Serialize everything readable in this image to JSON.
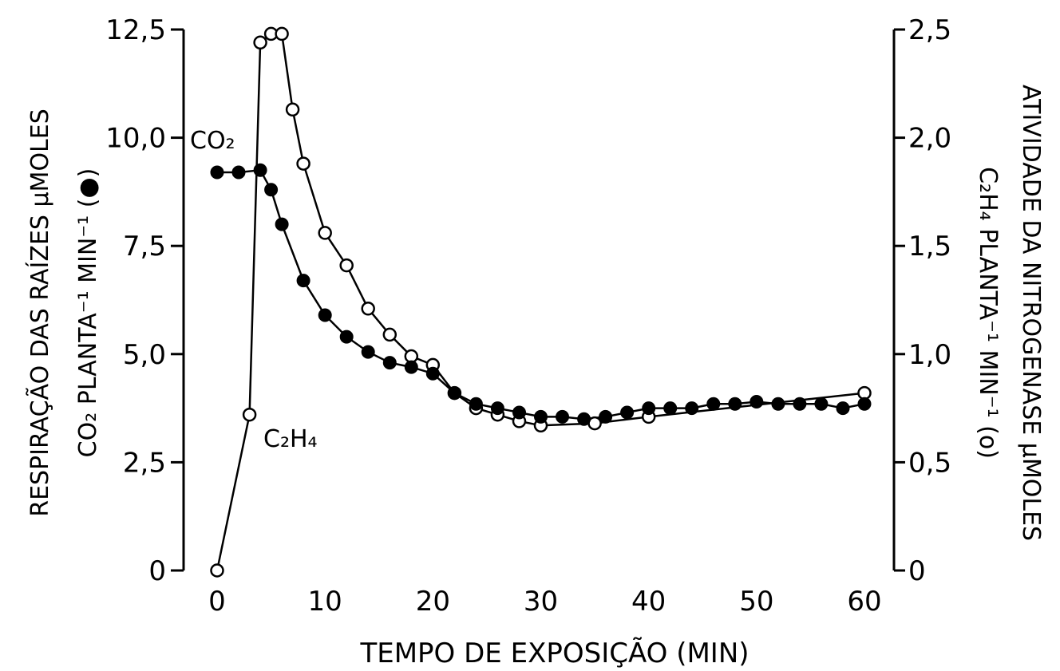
{
  "chart_data": {
    "type": "line",
    "xlabel": "TEMPO DE EXPOSIÇÃO (MIN)",
    "ylabel_left": [
      "RESPIRAÇÃO DAS RAÍZES μMOLES",
      "CO₂ PLANTA⁻¹ MIN⁻¹ (●)"
    ],
    "ylabel_right": [
      "ATIVIDADE DA NITROGENASE μMOLES",
      "C₂H₄ PLANTA⁻¹ MIN⁻¹ (o)"
    ],
    "xlim": [
      0,
      60
    ],
    "ylim_left": [
      0,
      12.5
    ],
    "ylim_right": [
      0,
      2.5
    ],
    "x_ticks": [
      "0",
      "10",
      "20",
      "30",
      "40",
      "50",
      "60"
    ],
    "y_left_ticks": [
      "0",
      "2,5",
      "5,0",
      "7,5",
      "10,0",
      "12,5"
    ],
    "y_right_ticks": [
      "0",
      "0,5",
      "1,0",
      "1,5",
      "2,0",
      "2,5"
    ],
    "grid": false,
    "series": [
      {
        "name": "CO₂",
        "axis": "left",
        "marker": "filled",
        "x": [
          0,
          2,
          4,
          5,
          6,
          8,
          10,
          12,
          14,
          16,
          18,
          20,
          22,
          24,
          26,
          28,
          30,
          32,
          34,
          36,
          38,
          40,
          42,
          44,
          46,
          48,
          50,
          52,
          54,
          56,
          58,
          60
        ],
        "y": [
          9.2,
          9.2,
          9.25,
          8.8,
          8.0,
          6.7,
          5.9,
          5.4,
          5.05,
          4.8,
          4.7,
          4.55,
          4.1,
          3.85,
          3.75,
          3.65,
          3.55,
          3.55,
          3.5,
          3.55,
          3.65,
          3.75,
          3.75,
          3.75,
          3.85,
          3.85,
          3.9,
          3.85,
          3.85,
          3.85,
          3.75,
          3.85
        ]
      },
      {
        "name": "C₂H₄",
        "axis": "right",
        "marker": "open",
        "x": [
          0,
          3,
          4,
          5,
          6,
          7,
          8,
          10,
          12,
          14,
          16,
          18,
          20,
          22,
          24,
          26,
          28,
          30,
          35,
          40,
          60
        ],
        "y": [
          0,
          0.72,
          2.44,
          2.48,
          2.48,
          2.13,
          1.88,
          1.56,
          1.41,
          1.21,
          1.09,
          0.99,
          0.95,
          0.82,
          0.75,
          0.72,
          0.69,
          0.67,
          0.68,
          0.71,
          0.82
        ]
      }
    ]
  }
}
